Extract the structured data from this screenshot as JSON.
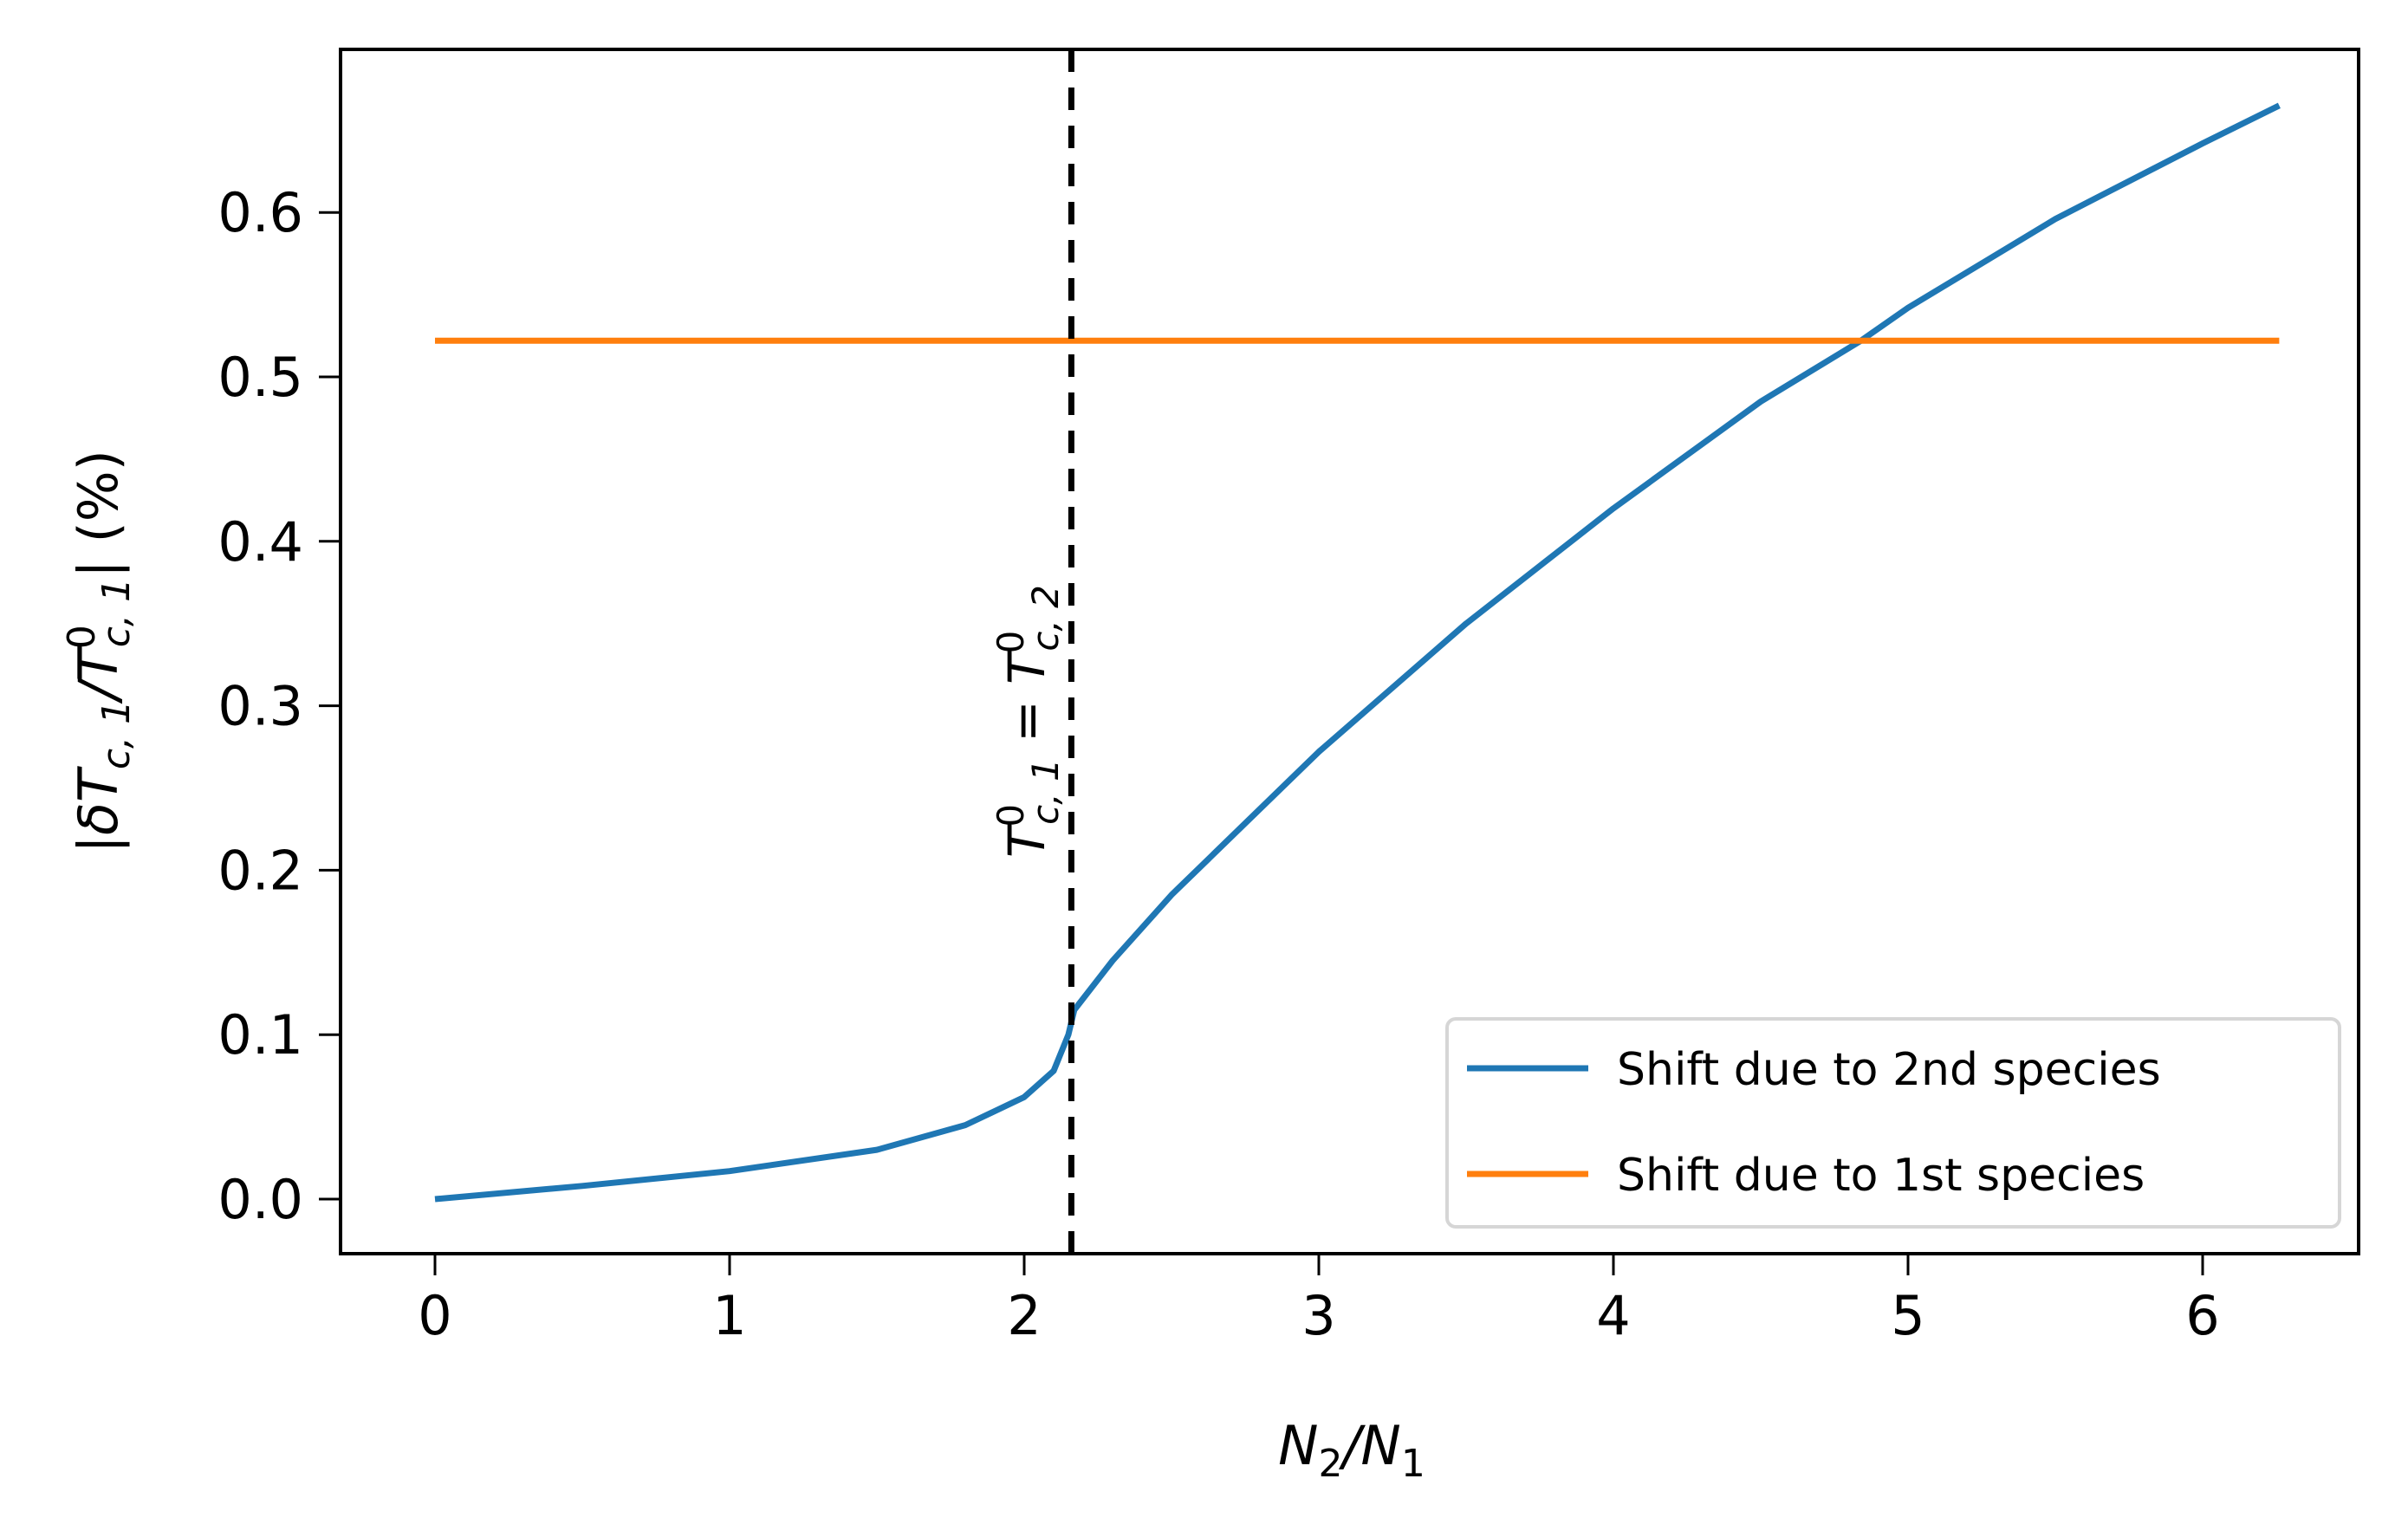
{
  "chart_data": {
    "type": "line",
    "title": "",
    "xlabel": "N2/N1",
    "ylabel": "|δTc,1/T0c,1| (%)",
    "xlim": [
      -0.3,
      6.56
    ],
    "ylim": [
      -0.033,
      0.7
    ],
    "x_ticks": [
      "0",
      "1",
      "2",
      "3",
      "4",
      "5",
      "6"
    ],
    "y_ticks": [
      "0.0",
      "0.1",
      "0.2",
      "0.3",
      "0.4",
      "0.5",
      "0.6"
    ],
    "grid": false,
    "legend_position": "lower right",
    "series": [
      {
        "name": "Shift due to 2nd species",
        "color": "#1f77b4",
        "x": [
          0,
          0.5,
          1.0,
          1.5,
          1.8,
          2.0,
          2.1,
          2.15,
          2.17,
          2.3,
          2.5,
          3.0,
          3.5,
          4.0,
          4.5,
          4.84,
          5.0,
          5.5,
          6.0,
          6.26
        ],
        "y": [
          0.0,
          0.008,
          0.017,
          0.03,
          0.045,
          0.062,
          0.078,
          0.1,
          0.115,
          0.145,
          0.185,
          0.272,
          0.35,
          0.42,
          0.485,
          0.522,
          0.542,
          0.596,
          0.642,
          0.665
        ]
      },
      {
        "name": "Shift due to 1st species",
        "color": "#ff7f0e",
        "x": [
          0,
          6.26
        ],
        "y": [
          0.522,
          0.522
        ]
      }
    ],
    "annotations": [
      {
        "type": "vline",
        "x": 2.16,
        "style": "dashed",
        "color": "#000000",
        "label": "T0c,1 = T0c,2"
      }
    ]
  },
  "labels": {
    "xlabel_main": "N",
    "xlabel_sub1": "2",
    "xlabel_slash": "/N",
    "xlabel_sub2": "1",
    "ylabel_text": "|δT",
    "ylabel_sub1": "c, 1",
    "ylabel_mid": "/T",
    "ylabel_sup": "0",
    "ylabel_sub2": "c, 1",
    "ylabel_end": "| (%)",
    "annot_T": "T",
    "annot_sup1": "0",
    "annot_sub1": "c, 1",
    "annot_eq": " = T",
    "annot_sup2": "0",
    "annot_sub2": "c, 2"
  },
  "legend": {
    "items": [
      {
        "label": "Shift due to 2nd species",
        "color": "#1f77b4"
      },
      {
        "label": "Shift due to 1st species",
        "color": "#ff7f0e"
      }
    ]
  }
}
